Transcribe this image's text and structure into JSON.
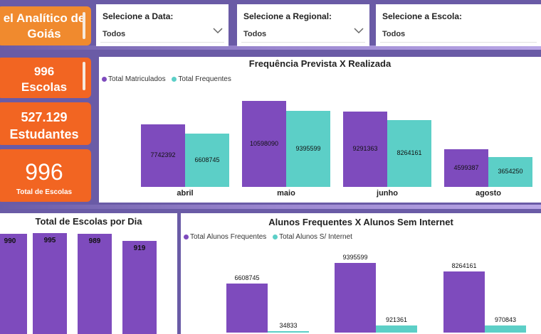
{
  "header": {
    "title_line1": "el Analítico de",
    "title_line2": "Goiás"
  },
  "filters": [
    {
      "label": "Selecione a Data:",
      "value": "Todos"
    },
    {
      "label": "Selecione a Regional:",
      "value": "Todos"
    },
    {
      "label": "Selecione a Escola:",
      "value": "Todos"
    }
  ],
  "kpis": {
    "escolas_value": "996",
    "escolas_label": "Escolas",
    "estudantes_value": "527.129",
    "estudantes_label": "Estudantes",
    "total_value": "996",
    "total_label": "Total de Escolas"
  },
  "colors": {
    "purple": "#7e4bbd",
    "teal": "#5ccfc7",
    "orange": "#f26522"
  },
  "charts": {
    "freq": {
      "title": "Frequência Prevista X Realizada",
      "legend": [
        "Total Matriculados",
        "Total Frequentes"
      ],
      "chart_data": {
        "type": "bar",
        "categories": [
          "abril",
          "maio",
          "junho",
          "agosto"
        ],
        "series": [
          {
            "name": "Total Matriculados",
            "values": [
              7742392,
              10598090,
              9291363,
              4599387
            ]
          },
          {
            "name": "Total Frequentes",
            "values": [
              6608745,
              9395599,
              8264161,
              3654250
            ]
          }
        ],
        "labels": [
          [
            "7742392",
            "6608745"
          ],
          [
            "10598090",
            "9395599"
          ],
          [
            "9291363",
            "8264161"
          ],
          [
            "4599387",
            "3654250"
          ]
        ]
      }
    },
    "escolas_dia": {
      "title": "Total de Escolas por Dia",
      "chart_data": {
        "type": "bar",
        "values": [
          990,
          995,
          989,
          919
        ],
        "labels": [
          "990",
          "995",
          "989",
          "919"
        ]
      }
    },
    "internet": {
      "title": "Alunos Frequentes X Alunos Sem Internet",
      "legend": [
        "Total Alunos Frequentes",
        "Total Alunos S/ Internet"
      ],
      "chart_data": {
        "type": "bar",
        "series": [
          {
            "name": "Total Alunos Frequentes",
            "values": [
              6608745,
              9395599,
              8264161
            ]
          },
          {
            "name": "Total Alunos S/ Internet",
            "values": [
              34833,
              921361,
              970843
            ]
          }
        ],
        "labels": [
          [
            "6608745",
            "34833"
          ],
          [
            "9395599",
            "921361"
          ],
          [
            "8264161",
            "970843"
          ]
        ]
      }
    }
  }
}
